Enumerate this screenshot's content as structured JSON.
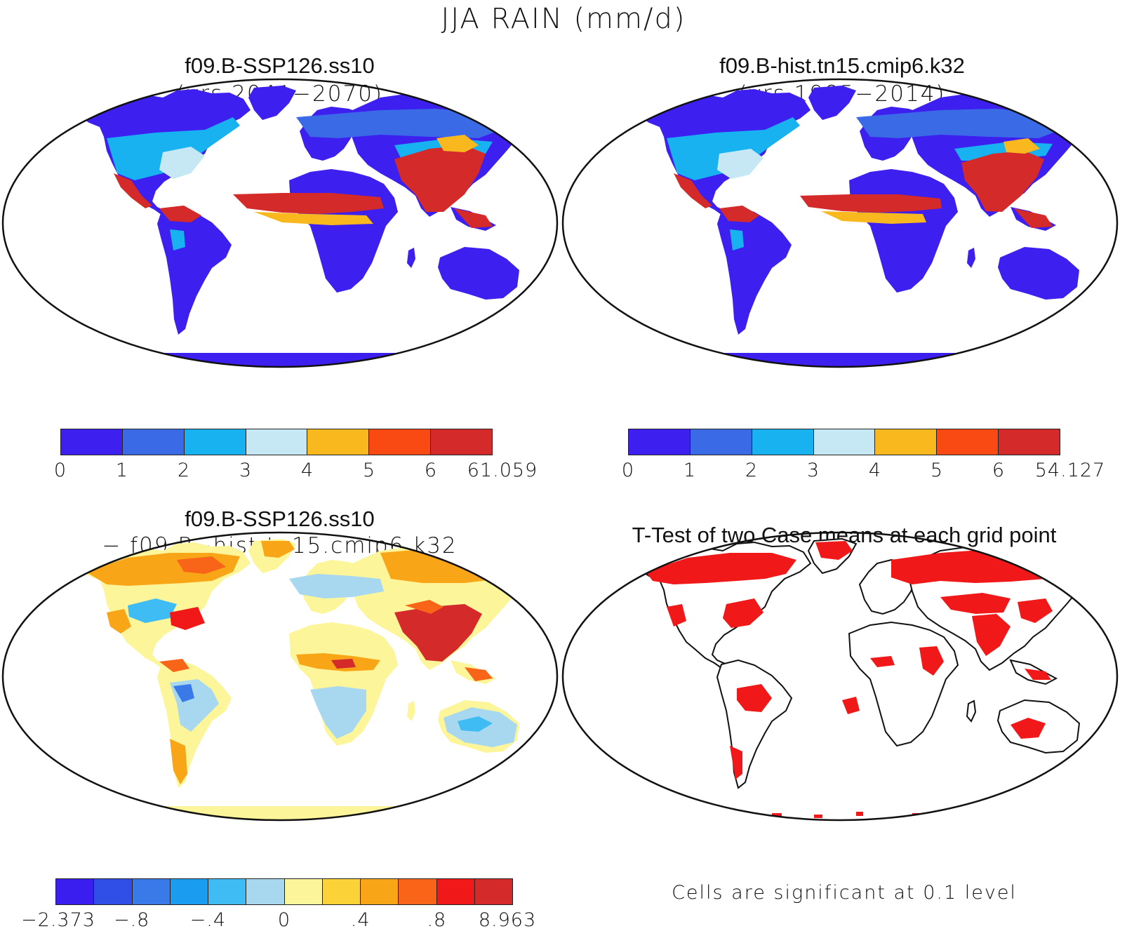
{
  "figure": {
    "title": "JJA RAIN (mm/d)"
  },
  "panels": [
    {
      "id": "ssp",
      "title": "f09.B-SSP126.ss10",
      "subtitle": "(yrs 2041−2070)"
    },
    {
      "id": "hist",
      "title": "f09.B-hist.tn15.cmip6.k32",
      "subtitle": "(yrs 1985−2014)"
    },
    {
      "id": "diff",
      "title": "f09.B-SSP126.ss10",
      "subtitle": "− f09.B−hist.tn15.cmip6.k32"
    },
    {
      "id": "ttest",
      "title": "T-Test of two Case means at each grid point",
      "subtitle": ""
    }
  ],
  "colorbars": {
    "ssp": {
      "colors": [
        "#3d1ff0",
        "#3a6ae6",
        "#18b2f0",
        "#c6e8f5",
        "#f8b81e",
        "#f84a12",
        "#d42a2a"
      ],
      "labels": [
        "0",
        "1",
        "2",
        "3",
        "4",
        "5",
        "6",
        "61.059"
      ]
    },
    "hist": {
      "colors": [
        "#3d1ff0",
        "#3a6ae6",
        "#18b2f0",
        "#c6e8f5",
        "#f8b81e",
        "#f84a12",
        "#d42a2a"
      ],
      "labels": [
        "0",
        "1",
        "2",
        "3",
        "4",
        "5",
        "6",
        "54.127"
      ]
    },
    "diff": {
      "colors": [
        "#3a1ef0",
        "#2f4fe6",
        "#3a7ae8",
        "#1a9cf0",
        "#40bcf4",
        "#a8d8f0",
        "#fdf59a",
        "#fbd238",
        "#f8a518",
        "#f86418",
        "#f01818",
        "#d42a2a"
      ],
      "labels": [
        "−2.373",
        "−.8",
        "−.4",
        "0",
        ".4",
        ".8",
        "8.963"
      ]
    }
  },
  "note": "Cells are significant at 0.1 level"
}
